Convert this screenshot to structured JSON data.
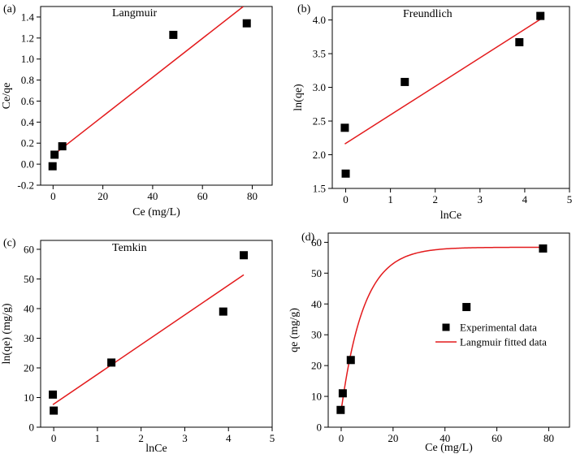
{
  "chart_data": [
    {
      "id": "a",
      "type": "scatter",
      "panel_label": "(a)",
      "title": "Langmuir",
      "xlabel": "Ce (mg/L)",
      "ylabel": "Ce/qe",
      "xlim": [
        -5,
        88
      ],
      "ylim": [
        -0.2,
        1.5
      ],
      "xticks": [
        0,
        20,
        40,
        60,
        80
      ],
      "yticks": [
        -0.2,
        0.0,
        0.2,
        0.4,
        0.6,
        0.8,
        1.0,
        1.2,
        1.4
      ],
      "xtick_labels": [
        "0",
        "20",
        "40",
        "60",
        "80"
      ],
      "ytick_labels": [
        "-0.2",
        "0.0",
        "0.2",
        "0.4",
        "0.6",
        "0.8",
        "1.0",
        "1.2",
        "1.4"
      ],
      "points": [
        {
          "x": -0.2,
          "y": -0.02
        },
        {
          "x": 0.6,
          "y": 0.09
        },
        {
          "x": 3.7,
          "y": 0.17
        },
        {
          "x": 48.3,
          "y": 1.23
        },
        {
          "x": 77.8,
          "y": 1.34
        }
      ],
      "fit_line": {
        "x": [
          0.8,
          76.4
        ],
        "y": [
          0.1,
          1.5
        ]
      },
      "colors": {
        "points": "#000000",
        "line": "#e31a1c"
      },
      "legend": null
    },
    {
      "id": "b",
      "type": "scatter",
      "panel_label": "(b)",
      "title": "Freundlich",
      "xlabel": "lnCe",
      "ylabel": "ln(qe)",
      "xlim": [
        -0.3,
        5.0
      ],
      "ylim": [
        1.5,
        4.2
      ],
      "xticks": [
        0,
        1,
        2,
        3,
        4,
        5
      ],
      "yticks": [
        1.5,
        2.0,
        2.5,
        3.0,
        3.5,
        4.0
      ],
      "xtick_labels": [
        "0",
        "1",
        "2",
        "3",
        "4",
        "5"
      ],
      "ytick_labels": [
        "1.5",
        "2.0",
        "2.5",
        "3.0",
        "3.5",
        "4.0"
      ],
      "points": [
        {
          "x": -0.02,
          "y": 2.4
        },
        {
          "x": 0.0,
          "y": 1.72
        },
        {
          "x": 1.32,
          "y": 3.08
        },
        {
          "x": 3.88,
          "y": 3.67
        },
        {
          "x": 4.35,
          "y": 4.06
        }
      ],
      "fit_line": {
        "x": [
          -0.02,
          4.35
        ],
        "y": [
          2.16,
          4.01
        ]
      },
      "colors": {
        "points": "#000000",
        "line": "#e31a1c"
      },
      "legend": null
    },
    {
      "id": "c",
      "type": "scatter",
      "panel_label": "(c)",
      "title": "Temkin",
      "xlabel": "lnCe",
      "ylabel": "ln(qe) (mg/g)",
      "xlim": [
        -0.3,
        5.0
      ],
      "ylim": [
        0,
        63
      ],
      "xticks": [
        0,
        1,
        2,
        3,
        4,
        5
      ],
      "yticks": [
        0,
        10,
        20,
        30,
        40,
        50,
        60
      ],
      "xtick_labels": [
        "0",
        "1",
        "2",
        "3",
        "4",
        "5"
      ],
      "ytick_labels": [
        "0",
        "10",
        "20",
        "30",
        "40",
        "50",
        "60"
      ],
      "points": [
        {
          "x": -0.02,
          "y": 11.0
        },
        {
          "x": 0.0,
          "y": 5.6
        },
        {
          "x": 1.32,
          "y": 21.8
        },
        {
          "x": 3.88,
          "y": 39.0
        },
        {
          "x": 4.35,
          "y": 58.0
        }
      ],
      "fit_line": {
        "x": [
          -0.02,
          4.35
        ],
        "y": [
          7.6,
          51.4
        ]
      },
      "colors": {
        "points": "#000000",
        "line": "#e31a1c"
      },
      "legend": null
    },
    {
      "id": "d",
      "type": "scatter",
      "panel_label": "(d)",
      "title": "",
      "xlabel": "Ce (mg/L)",
      "ylabel": "qe (mg/g)",
      "xlim": [
        -5,
        88
      ],
      "ylim": [
        0,
        63
      ],
      "xticks": [
        0,
        20,
        40,
        60,
        80
      ],
      "yticks": [
        0,
        10,
        20,
        30,
        40,
        50,
        60
      ],
      "xtick_labels": [
        "0",
        "20",
        "40",
        "60",
        "80"
      ],
      "ytick_labels": [
        "0",
        "10",
        "20",
        "30",
        "40",
        "50",
        "60"
      ],
      "points": [
        {
          "x": -0.2,
          "y": 5.6
        },
        {
          "x": 0.6,
          "y": 11.0
        },
        {
          "x": 3.7,
          "y": 21.8
        },
        {
          "x": 48.3,
          "y": 39.0
        },
        {
          "x": 77.8,
          "y": 58.0
        }
      ],
      "fit_curve": {
        "model": "langmuir",
        "qmax": 58.4,
        "kl": 0.115,
        "x_start": -0.2,
        "x_end": 77.8
      },
      "colors": {
        "points": "#000000",
        "line": "#e31a1c"
      },
      "legend": {
        "placement": "center-right",
        "entries": [
          {
            "label": "Experimental data",
            "kind": "marker"
          },
          {
            "label": "Langmuir fitted data",
            "kind": "line"
          }
        ]
      }
    }
  ]
}
